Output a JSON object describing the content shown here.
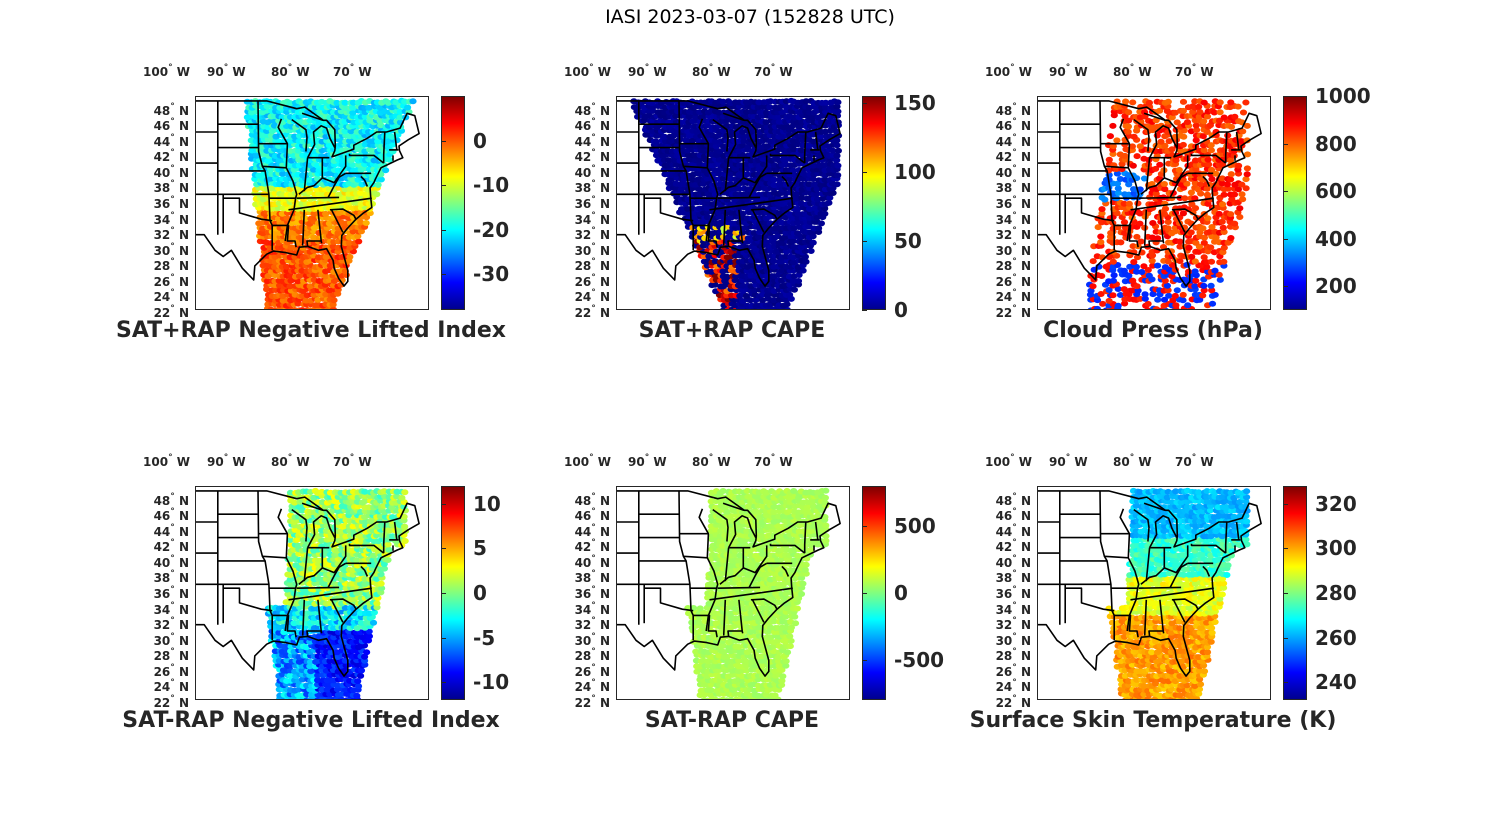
{
  "figure_title": "IASI 2023-03-07 (152828 UTC)",
  "colors": {
    "jet": [
      "#00008f",
      "#0000ff",
      "#0080ff",
      "#00ffff",
      "#80ff80",
      "#ffff00",
      "#ff8000",
      "#ff0000",
      "#800000"
    ],
    "map_outline": "#000000"
  },
  "lon_labels": [
    {
      "value": "100",
      "suffix": "W"
    },
    {
      "value": "90",
      "suffix": "W"
    },
    {
      "value": "80",
      "suffix": "W"
    },
    {
      "value": "70",
      "suffix": "W"
    }
  ],
  "lat_labels": [
    {
      "value": "48",
      "suffix": "N"
    },
    {
      "value": "46",
      "suffix": "N"
    },
    {
      "value": "44",
      "suffix": "N"
    },
    {
      "value": "42",
      "suffix": "N"
    },
    {
      "value": "40",
      "suffix": "N"
    },
    {
      "value": "38",
      "suffix": "N"
    },
    {
      "value": "36",
      "suffix": "N"
    },
    {
      "value": "34",
      "suffix": "N"
    },
    {
      "value": "32",
      "suffix": "N"
    },
    {
      "value": "30",
      "suffix": "N"
    },
    {
      "value": "28",
      "suffix": "N"
    },
    {
      "value": "26",
      "suffix": "N"
    },
    {
      "value": "24",
      "suffix": "N"
    },
    {
      "value": "22",
      "suffix": "N"
    }
  ],
  "panels": [
    {
      "title": "SAT+RAP Negative Lifted Index",
      "cmin": -38,
      "cmax": 10,
      "ticks": [
        "0",
        "-10",
        "-20",
        "-30"
      ],
      "tick_values": [
        0,
        -10,
        -20,
        -30
      ],
      "field": "li"
    },
    {
      "title": "SAT+RAP CAPE",
      "cmin": 0,
      "cmax": 155,
      "ticks": [
        "150",
        "100",
        "50",
        "0"
      ],
      "tick_values": [
        150,
        100,
        50,
        0
      ],
      "field": "cape"
    },
    {
      "title": "Cloud Press (hPa)",
      "cmin": 100,
      "cmax": 1000,
      "ticks": [
        "1000",
        "800",
        "600",
        "400",
        "200"
      ],
      "tick_values": [
        1000,
        800,
        600,
        400,
        200
      ],
      "field": "cloud"
    },
    {
      "title": "SAT-RAP Negative Lifted Index",
      "cmin": -12,
      "cmax": 12,
      "ticks": [
        "10",
        "5",
        "0",
        "-5",
        "-10"
      ],
      "tick_values": [
        10,
        5,
        0,
        -5,
        -10
      ],
      "field": "dli"
    },
    {
      "title": "SAT-RAP CAPE",
      "cmin": -800,
      "cmax": 800,
      "ticks": [
        "500",
        "0",
        "-500"
      ],
      "tick_values": [
        500,
        0,
        -500
      ],
      "field": "dcape"
    },
    {
      "title": "Surface Skin Temperature (K)",
      "cmin": 232,
      "cmax": 328,
      "ticks": [
        "320",
        "300",
        "280",
        "260",
        "240"
      ],
      "tick_values": [
        320,
        300,
        280,
        260,
        240
      ],
      "field": "skt"
    }
  ]
}
